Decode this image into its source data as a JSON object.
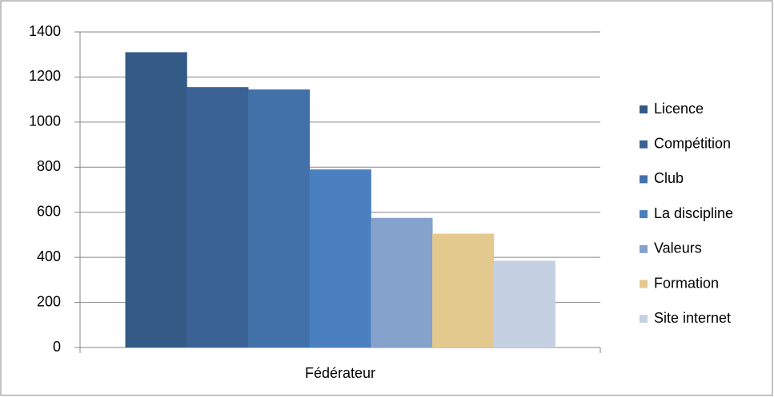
{
  "chart_data": {
    "type": "bar",
    "categories": [
      "Fédérateur"
    ],
    "series": [
      {
        "name": "Licence",
        "color": "#345a86",
        "values": [
          1310
        ]
      },
      {
        "name": "Compétition",
        "color": "#3a6295",
        "values": [
          1155
        ]
      },
      {
        "name": "Club",
        "color": "#4271a9",
        "values": [
          1145
        ]
      },
      {
        "name": "La discipline",
        "color": "#4a80c0",
        "values": [
          790
        ]
      },
      {
        "name": "Valeurs",
        "color": "#85a2cd",
        "values": [
          575
        ]
      },
      {
        "name": "Formation",
        "color": "#e4c98f",
        "values": [
          505
        ]
      },
      {
        "name": "Site internet",
        "color": "#c5d1e3",
        "values": [
          385
        ]
      }
    ],
    "ylim": [
      0,
      1400
    ],
    "yticks": [
      0,
      200,
      400,
      600,
      800,
      1000,
      1200,
      1400
    ],
    "grid": true,
    "legend": "right"
  }
}
